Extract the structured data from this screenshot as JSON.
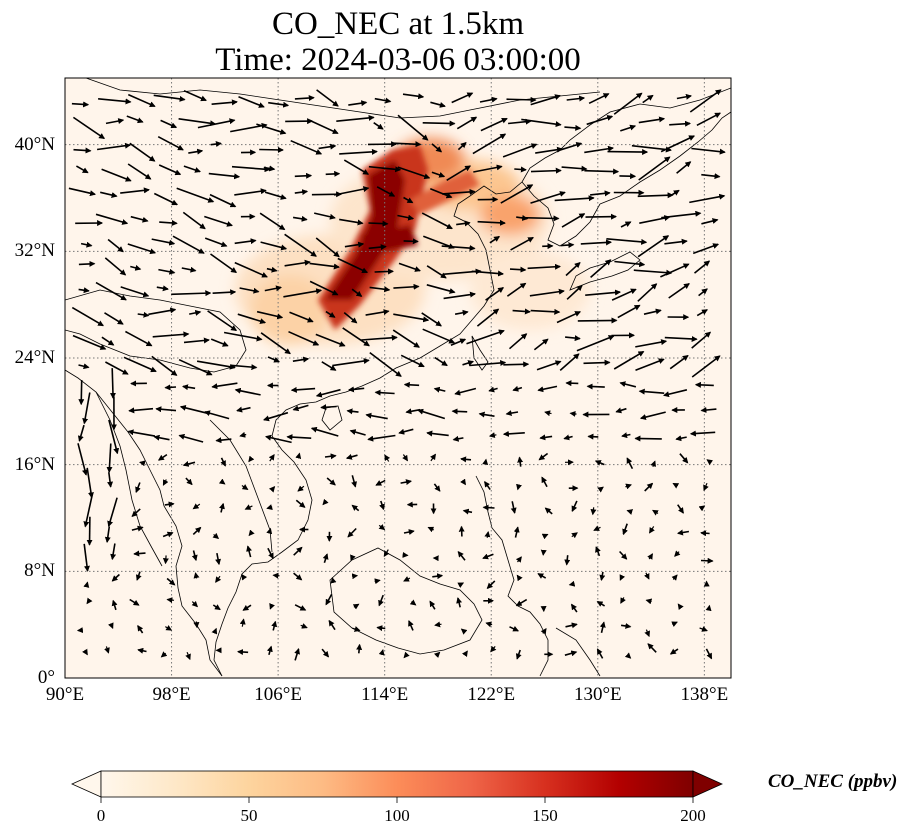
{
  "title": "CO_NEC at 1.5km",
  "subtitle": "Time: 2024-03-06 03:00:00",
  "map": {
    "projection": "PlateCarree",
    "lon_range": [
      90,
      140
    ],
    "lat_range": [
      0,
      45
    ],
    "gridlines": "dotted",
    "lat_ticks": [
      {
        "value": 0,
        "label": "0°"
      },
      {
        "value": 8,
        "label": "8°N"
      },
      {
        "value": 16,
        "label": "16°N"
      },
      {
        "value": 24,
        "label": "24°N"
      },
      {
        "value": 32,
        "label": "32°N"
      },
      {
        "value": 40,
        "label": "40°N"
      }
    ],
    "lon_ticks": [
      {
        "value": 90,
        "label": "90°E"
      },
      {
        "value": 98,
        "label": "98°E"
      },
      {
        "value": 106,
        "label": "106°E"
      },
      {
        "value": 114,
        "label": "114°E"
      },
      {
        "value": 122,
        "label": "122°E"
      },
      {
        "value": 130,
        "label": "130°E"
      },
      {
        "value": 138,
        "label": "138°E"
      }
    ],
    "background_color": "#fff5eb",
    "wind_vectors": "shown"
  },
  "colorbar": {
    "label": "CO_NEC (ppbv)",
    "colormap": "OrRd",
    "range": [
      0,
      200
    ],
    "extend": "both",
    "ticks": [
      {
        "value": 0,
        "label": "0"
      },
      {
        "value": 50,
        "label": "50"
      },
      {
        "value": 100,
        "label": "100"
      },
      {
        "value": 150,
        "label": "150"
      },
      {
        "value": 200,
        "label": "200"
      }
    ]
  }
}
